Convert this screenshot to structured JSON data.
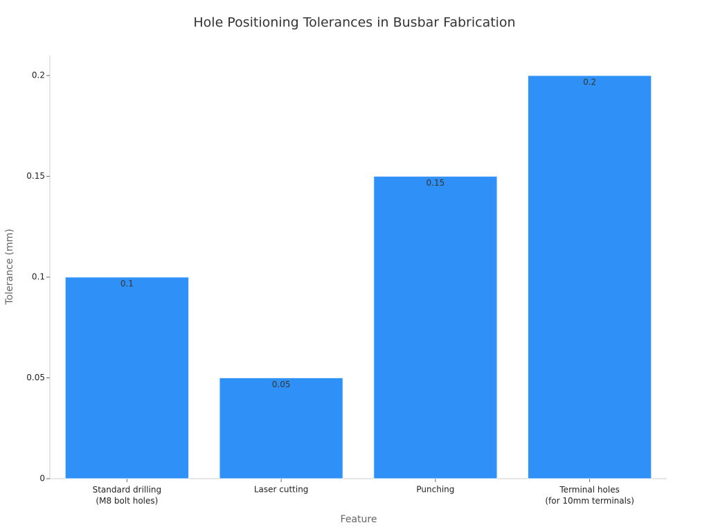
{
  "chart_data": {
    "type": "bar",
    "title": "Hole Positioning Tolerances in Busbar Fabrication",
    "x_label": "Feature",
    "y_label": "Tolerance (mm)",
    "categories": [
      "Standard drilling\n(M8 bolt holes)",
      "Laser cutting",
      "Punching",
      "Terminal holes\n(for 10mm terminals)"
    ],
    "values": [
      0.1,
      0.05,
      0.15,
      0.2
    ],
    "color": "#2f91f8",
    "ylim": [
      0,
      0.21
    ],
    "yticks": [
      0,
      0.05,
      0.1,
      0.15,
      0.2
    ],
    "grid": false
  }
}
